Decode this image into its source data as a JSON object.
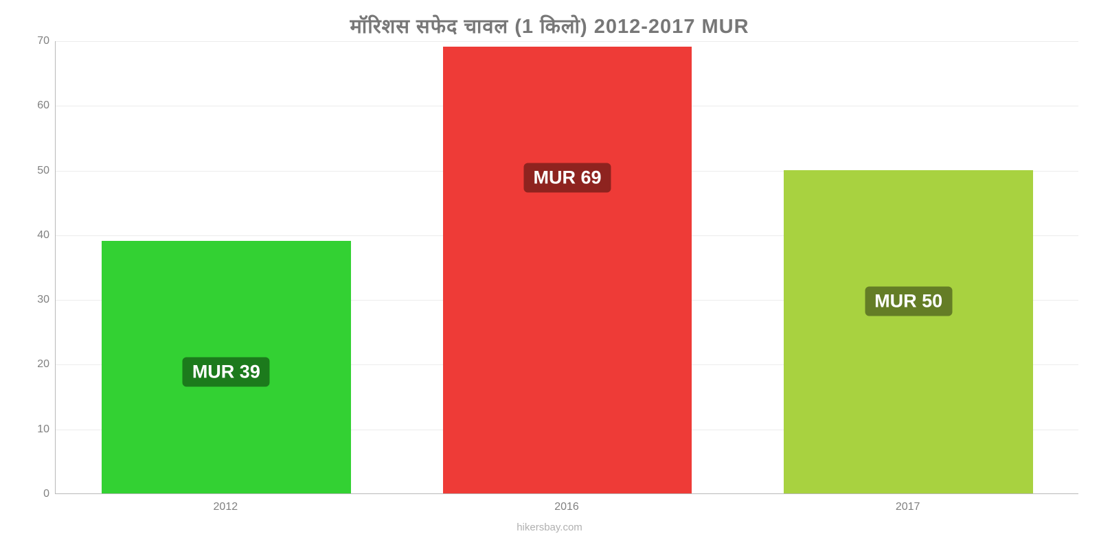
{
  "chart": {
    "type": "bar",
    "title": "मॉरिशस   सफेद   चावल   (1 किलो) 2012-2017 MUR",
    "title_color": "#777777",
    "title_fontsize": 29,
    "background_color": "#ffffff",
    "grid_color": "#ececec",
    "axis_line_color": "#b8b8b8",
    "tick_font_color": "#808080",
    "tick_fontsize": 16,
    "ylim": [
      0,
      70
    ],
    "yticks": [
      0,
      10,
      20,
      30,
      40,
      50,
      60,
      70
    ],
    "categories": [
      "2012",
      "2016",
      "2017"
    ],
    "values": [
      39,
      69,
      50
    ],
    "bar_colors": [
      "#33d133",
      "#ee3b37",
      "#a8d240"
    ],
    "bar_labels": [
      "MUR 39",
      "MUR 69",
      "MUR 50"
    ],
    "bar_label_bg": [
      "#1c7a1c",
      "#8e231f",
      "#647d26"
    ],
    "bar_label_fontsize": 27,
    "bar_width_ratio": 0.73,
    "bar_label_vertical_offset_from_top": 190,
    "watermark": "hikersbay.com",
    "watermark_color": "#b0b0b0",
    "watermark_fontsize": 15
  }
}
